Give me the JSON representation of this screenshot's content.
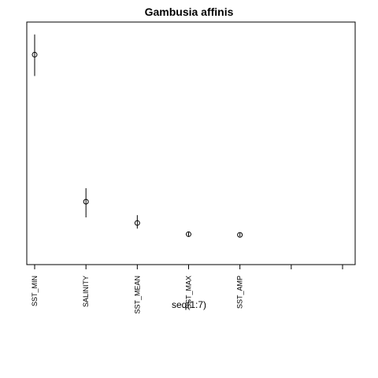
{
  "chart_data": {
    "type": "scatter",
    "title": "Gambusia affinis",
    "xlabel": "seq(1:7)",
    "ylabel": "",
    "categories": [
      "SST_MIN",
      "SALINITY",
      "SST_MEAN",
      "SST_MAX",
      "SST_AMP",
      "",
      ""
    ],
    "x": [
      1,
      2,
      3,
      4,
      5,
      6,
      7
    ],
    "series": [
      {
        "values": [
          0.895,
          0.24,
          0.145,
          0.095,
          0.092
        ],
        "lower": [
          0.8,
          0.17,
          0.12,
          0.085,
          0.085
        ],
        "upper": [
          0.985,
          0.3,
          0.18,
          0.105,
          0.1
        ]
      }
    ],
    "xlim": [
      1,
      7
    ],
    "ylim": [
      0.0,
      1.0
    ],
    "grid": false,
    "legend": "none"
  }
}
